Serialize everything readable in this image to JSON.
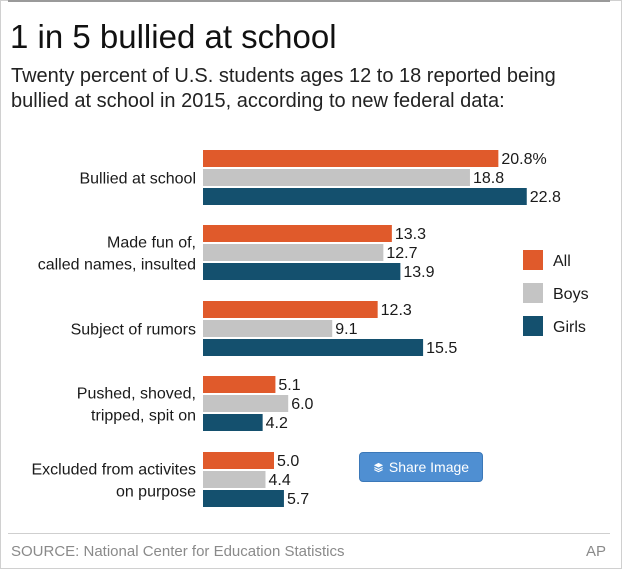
{
  "header": {
    "title": "1 in 5 bullied at school",
    "subtitle": "Twenty percent of U.S. students ages 12 to 18 reported being bullied at school in 2015, according to new federal data:"
  },
  "footer": {
    "source": "SOURCE: National Center for Education Statistics",
    "credit": "AP"
  },
  "share_button": {
    "label": "Share Image",
    "icon": "layers-icon"
  },
  "colors": {
    "All": "#e05a2b",
    "Boys": "#c4c4c4",
    "Girls": "#14506e"
  },
  "chart_data": {
    "type": "bar",
    "orientation": "horizontal",
    "title": "1 in 5 bullied at school",
    "categories": [
      [
        "Bullied at school"
      ],
      [
        "Made fun of,",
        "called names, insulted"
      ],
      [
        "Subject of rumors"
      ],
      [
        "Pushed, shoved,",
        "tripped, spit on"
      ],
      [
        "Excluded from activites",
        "on purpose"
      ]
    ],
    "series": [
      {
        "name": "All",
        "color": "#e05a2b",
        "values": [
          20.8,
          13.3,
          12.3,
          5.1,
          5.0
        ],
        "labels": [
          "20.8%",
          "13.3",
          "12.3",
          "5.1",
          "5.0"
        ]
      },
      {
        "name": "Boys",
        "color": "#c4c4c4",
        "values": [
          18.8,
          12.7,
          9.1,
          6.0,
          4.4
        ],
        "labels": [
          "18.8",
          "12.7",
          "9.1",
          "6.0",
          "4.4"
        ]
      },
      {
        "name": "Girls",
        "color": "#14506e",
        "values": [
          22.8,
          13.9,
          15.5,
          4.2,
          5.7
        ],
        "labels": [
          "22.8",
          "13.9",
          "15.5",
          "4.2",
          "5.7"
        ]
      }
    ],
    "legend_position": "right",
    "grid": false,
    "axis_visible": false
  }
}
